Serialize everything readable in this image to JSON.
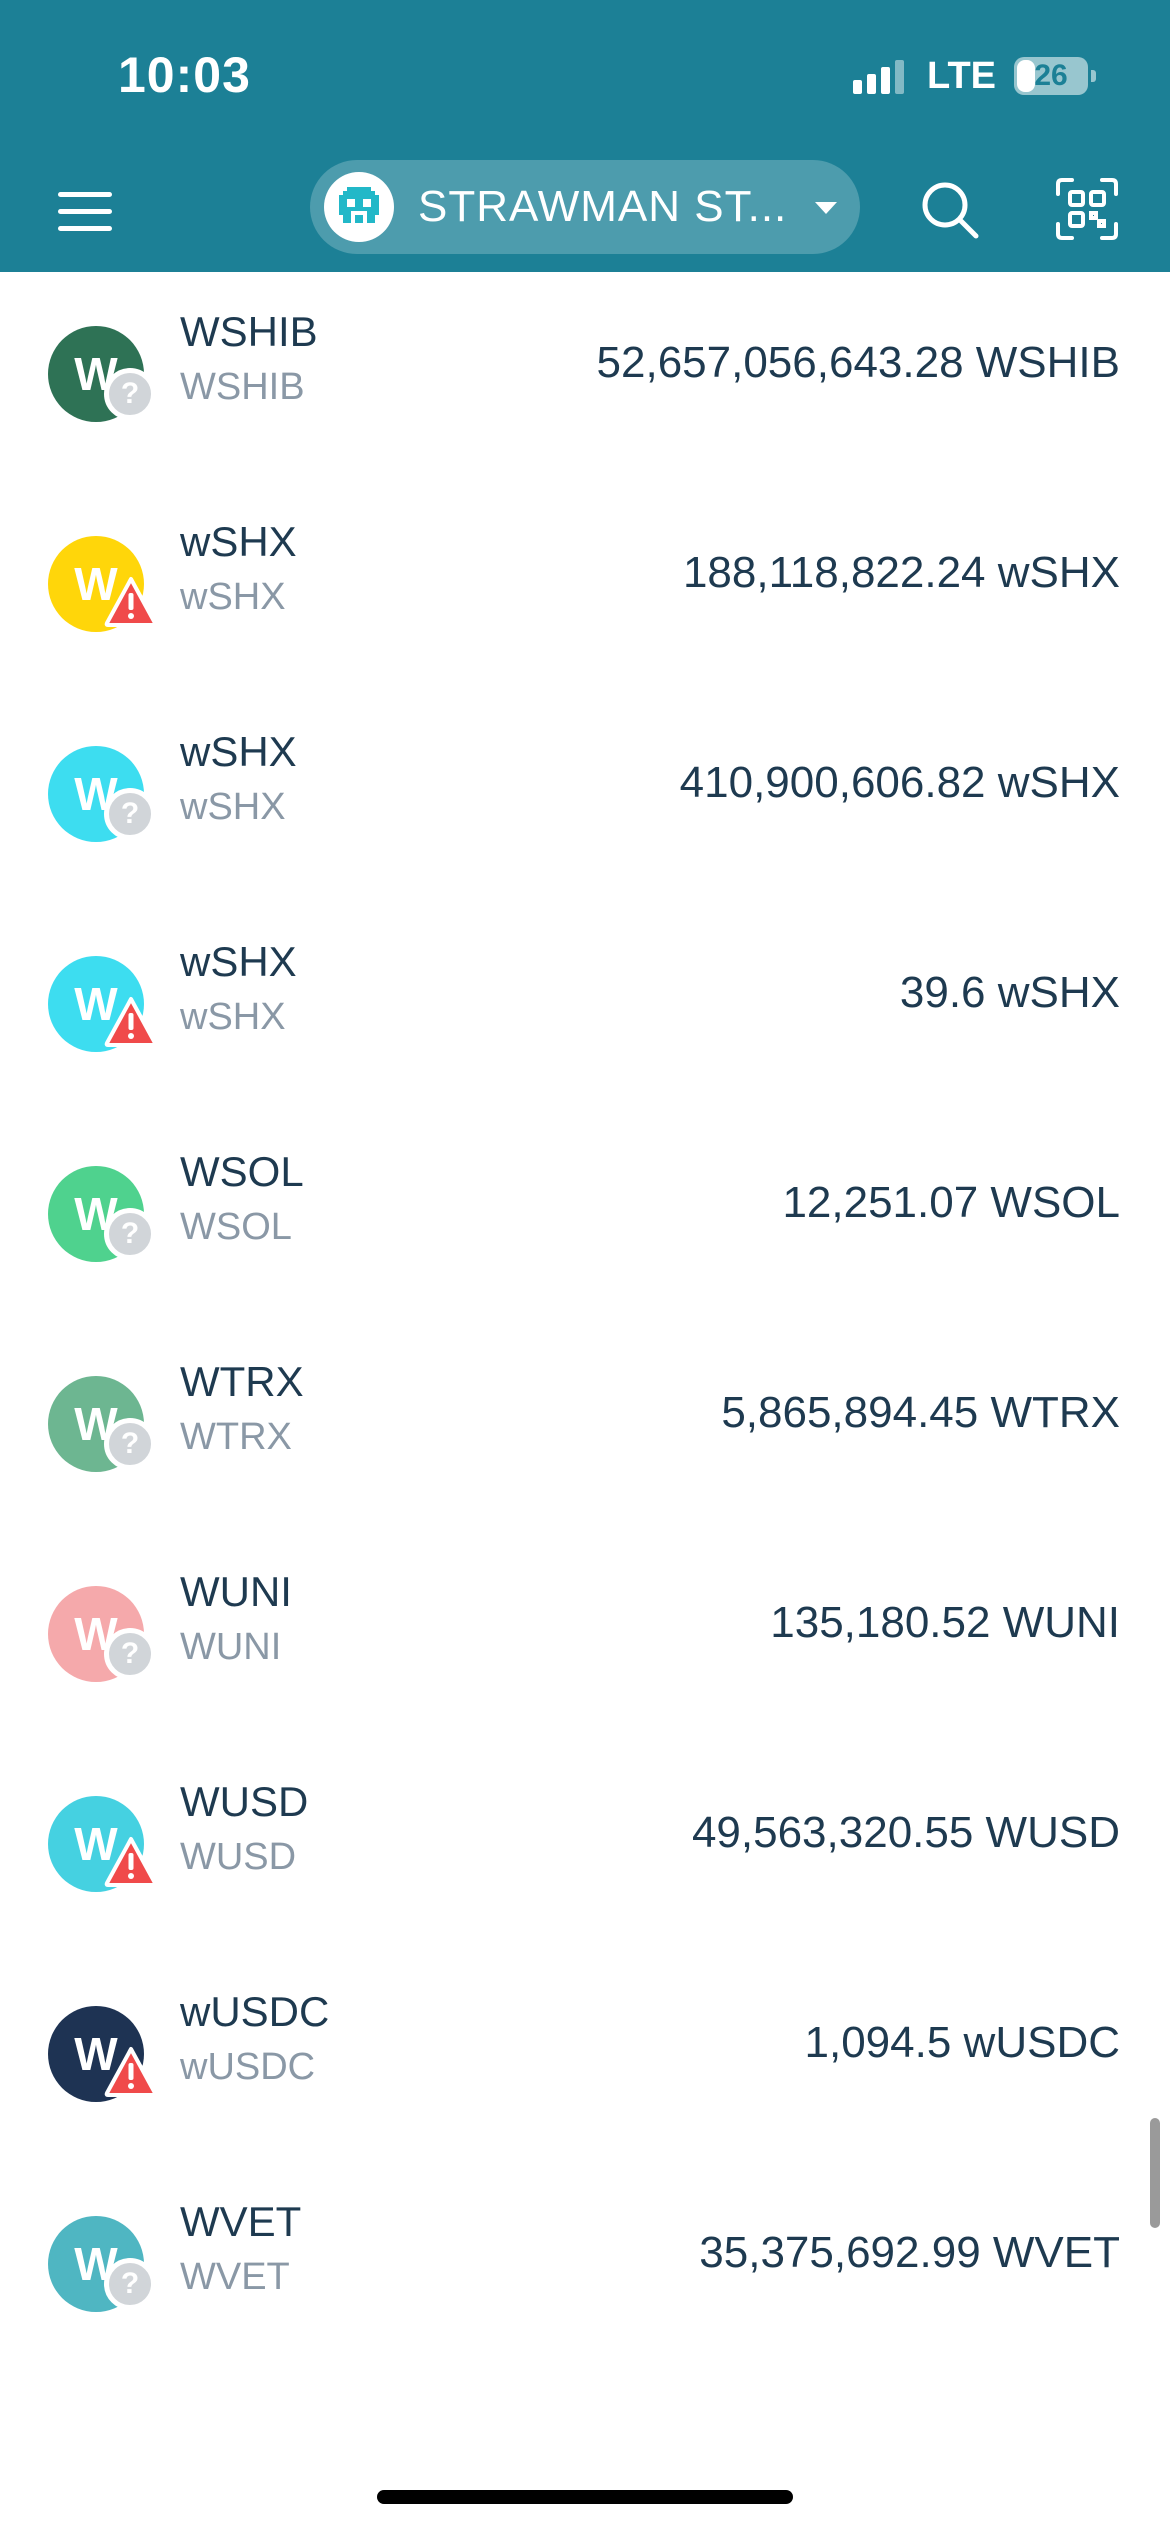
{
  "status_bar": {
    "time": "10:03",
    "network": "LTE",
    "battery_level": "26",
    "signal_bars_active": 3,
    "signal_bars_total": 4
  },
  "header": {
    "account_name": "STRAWMAN ST...",
    "background_color": "#1c8096",
    "icons": {
      "menu": "hamburger-menu-icon",
      "account_avatar": "pixel-alien-avatar-icon",
      "dropdown": "caret-down-icon",
      "search": "search-icon",
      "scan": "qr-scan-icon"
    }
  },
  "tokens": [
    {
      "name": "WSHIB",
      "symbol": "WSHIB",
      "balance": "52,657,056,643.28 WSHIB",
      "icon_letter": "W",
      "icon_color": "#2e7255",
      "badge": "unknown"
    },
    {
      "name": "wSHX",
      "symbol": "wSHX",
      "balance": "188,118,822.24 wSHX",
      "icon_letter": "W",
      "icon_color": "#ffd60a",
      "badge": "warning"
    },
    {
      "name": "wSHX",
      "symbol": "wSHX",
      "balance": "410,900,606.82 wSHX",
      "icon_letter": "W",
      "icon_color": "#3dddf0",
      "badge": "unknown"
    },
    {
      "name": "wSHX",
      "symbol": "wSHX",
      "balance": "39.6 wSHX",
      "icon_letter": "W",
      "icon_color": "#3dddf0",
      "badge": "warning"
    },
    {
      "name": "WSOL",
      "symbol": "WSOL",
      "balance": "12,251.07 WSOL",
      "icon_letter": "W",
      "icon_color": "#4fd28e",
      "badge": "unknown"
    },
    {
      "name": "WTRX",
      "symbol": "WTRX",
      "balance": "5,865,894.45 WTRX",
      "icon_letter": "W",
      "icon_color": "#6db691",
      "badge": "unknown"
    },
    {
      "name": "WUNI",
      "symbol": "WUNI",
      "balance": "135,180.52 WUNI",
      "icon_letter": "W",
      "icon_color": "#f5a9ab",
      "badge": "unknown"
    },
    {
      "name": "WUSD",
      "symbol": "WUSD",
      "balance": "49,563,320.55 WUSD",
      "icon_letter": "W",
      "icon_color": "#45d1e1",
      "badge": "warning"
    },
    {
      "name": "wUSDC",
      "symbol": "wUSDC",
      "balance": "1,094.5 wUSDC",
      "icon_letter": "W",
      "icon_color": "#1e3353",
      "badge": "warning"
    },
    {
      "name": "WVET",
      "symbol": "WVET",
      "balance": "35,375,692.99 WVET",
      "icon_letter": "W",
      "icon_color": "#4fb6c2",
      "badge": "unknown"
    }
  ],
  "badge_icons": {
    "unknown": "question-mark-icon",
    "warning": "warning-triangle-icon"
  },
  "colors": {
    "primary_text": "#1e3a50",
    "secondary_text": "#8a98a6",
    "warning": "#f04a4a",
    "unknown_badge": "#d1d5d9"
  }
}
